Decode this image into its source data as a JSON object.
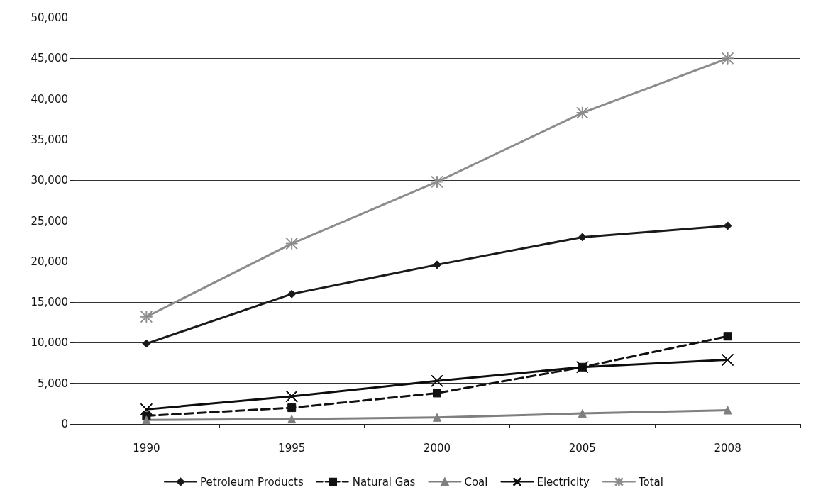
{
  "chart_data": {
    "type": "line",
    "categories": [
      "1990",
      "1995",
      "2000",
      "2005",
      "2008"
    ],
    "series": [
      {
        "name": "Petroleum Products",
        "color": "#1a1a1a",
        "marker": "diamond",
        "line_style": "solid",
        "values": [
          9900,
          16000,
          19600,
          23000,
          24400
        ]
      },
      {
        "name": "Natural Gas",
        "color": "#111111",
        "marker": "square",
        "line_style": "dashed",
        "values": [
          1000,
          2000,
          3800,
          7000,
          10800
        ]
      },
      {
        "name": "Coal",
        "color": "#7f7f7f",
        "marker": "triangle",
        "line_style": "solid",
        "values": [
          500,
          600,
          800,
          1300,
          1700
        ]
      },
      {
        "name": "Electricity",
        "color": "#0d0d0d",
        "marker": "cross",
        "line_style": "solid",
        "values": [
          1800,
          3400,
          5300,
          7000,
          7900
        ]
      },
      {
        "name": "Total",
        "color": "#8c8c8c",
        "marker": "star",
        "line_style": "solid",
        "values": [
          13200,
          22200,
          29800,
          38300,
          45000
        ]
      }
    ],
    "ylim": [
      0,
      50000
    ],
    "yticks": [
      0,
      {
        "value": 5000,
        "label": "5,000"
      },
      {
        "value": 10000,
        "label": "10,000"
      },
      {
        "value": 15000,
        "label": "15,000"
      },
      {
        "value": 20000,
        "label": "20,000"
      },
      {
        "value": 25000,
        "label": "25,000"
      },
      {
        "value": 30000,
        "label": "30,000"
      },
      {
        "value": 35000,
        "label": "35,000"
      },
      {
        "value": 40000,
        "label": "40,000"
      },
      {
        "value": 45000,
        "label": "45,000"
      },
      {
        "value": 50000,
        "label": "50,000"
      }
    ],
    "grid": "y",
    "legend": "bottom"
  }
}
